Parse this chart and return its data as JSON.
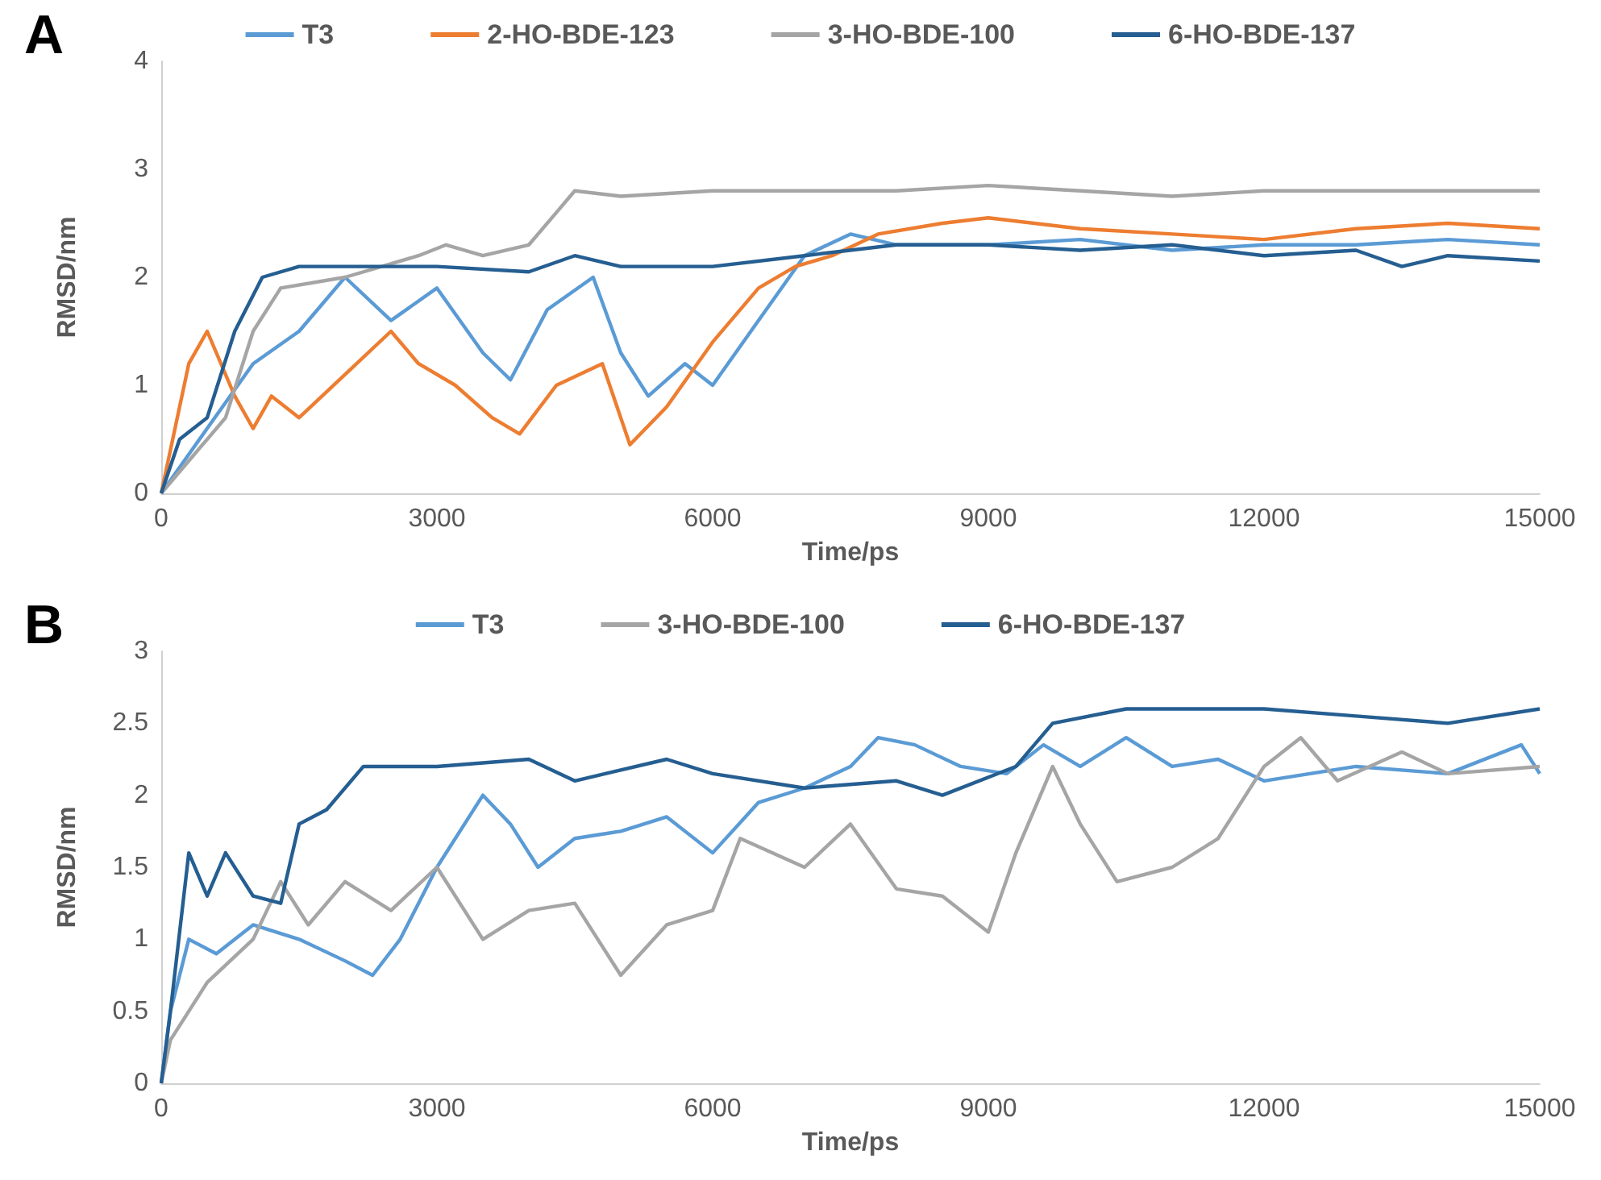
{
  "chart_data": [
    {
      "type": "line",
      "title": "A",
      "xlabel": "Time/ps",
      "ylabel": "RMSD/nm",
      "xlim": [
        0,
        15000
      ],
      "xticks": [
        0,
        3000,
        6000,
        9000,
        12000,
        15000
      ],
      "ylim": [
        0,
        4
      ],
      "yticks": [
        0,
        1,
        2,
        3,
        4
      ],
      "grid": false,
      "legend": "top",
      "marker": "none",
      "line_style": "solid",
      "series": [
        {
          "name": "T3",
          "color": "#5b9bd5",
          "x": [
            0,
            500,
            1000,
            1500,
            2000,
            2500,
            3000,
            3500,
            3800,
            4200,
            4700,
            5000,
            5300,
            5700,
            6000,
            6500,
            7000,
            7500,
            8000,
            9000,
            10000,
            11000,
            12000,
            13000,
            14000,
            15000
          ],
          "values": [
            0,
            0.6,
            1.2,
            1.5,
            2.0,
            1.6,
            1.9,
            1.3,
            1.05,
            1.7,
            2.0,
            1.3,
            0.9,
            1.2,
            1.0,
            1.6,
            2.2,
            2.4,
            2.3,
            2.3,
            2.35,
            2.25,
            2.3,
            2.3,
            2.35,
            2.3
          ]
        },
        {
          "name": "2-HO-BDE-123",
          "color": "#ed7d31",
          "x": [
            0,
            300,
            500,
            800,
            1000,
            1200,
            1500,
            2000,
            2500,
            2800,
            3200,
            3600,
            3900,
            4300,
            4800,
            5100,
            5500,
            6000,
            6500,
            6900,
            7300,
            7800,
            8500,
            9000,
            10000,
            11000,
            12000,
            13000,
            14000,
            15000
          ],
          "values": [
            0,
            1.2,
            1.5,
            0.9,
            0.6,
            0.9,
            0.7,
            1.1,
            1.5,
            1.2,
            1.0,
            0.7,
            0.55,
            1.0,
            1.2,
            0.45,
            0.8,
            1.4,
            1.9,
            2.1,
            2.2,
            2.4,
            2.5,
            2.55,
            2.45,
            2.4,
            2.35,
            2.45,
            2.5,
            2.45
          ]
        },
        {
          "name": "3-HO-BDE-100",
          "color": "#a5a5a5",
          "x": [
            0,
            300,
            700,
            1000,
            1300,
            2000,
            2800,
            3100,
            3500,
            4000,
            4300,
            4500,
            5000,
            6000,
            7000,
            8000,
            9000,
            10000,
            11000,
            12000,
            13000,
            14000,
            15000
          ],
          "values": [
            0,
            0.3,
            0.7,
            1.5,
            1.9,
            2.0,
            2.2,
            2.3,
            2.2,
            2.3,
            2.6,
            2.8,
            2.75,
            2.8,
            2.8,
            2.8,
            2.85,
            2.8,
            2.75,
            2.8,
            2.8,
            2.8,
            2.8
          ]
        },
        {
          "name": "6-HO-BDE-137",
          "color": "#255e91",
          "x": [
            0,
            200,
            500,
            800,
            1100,
            1500,
            2000,
            3000,
            4000,
            4500,
            5000,
            6000,
            7000,
            8000,
            9000,
            10000,
            11000,
            12000,
            13000,
            13500,
            14000,
            15000
          ],
          "values": [
            0,
            0.5,
            0.7,
            1.5,
            2.0,
            2.1,
            2.1,
            2.1,
            2.05,
            2.2,
            2.1,
            2.1,
            2.2,
            2.3,
            2.3,
            2.25,
            2.3,
            2.2,
            2.25,
            2.1,
            2.2,
            2.15
          ]
        }
      ]
    },
    {
      "type": "line",
      "title": "B",
      "xlabel": "Time/ps",
      "ylabel": "RMSD/nm",
      "xlim": [
        0,
        15000
      ],
      "xticks": [
        0,
        3000,
        6000,
        9000,
        12000,
        15000
      ],
      "ylim": [
        0,
        3
      ],
      "yticks": [
        0,
        0.5,
        1,
        1.5,
        2,
        2.5,
        3
      ],
      "grid": false,
      "legend": "top",
      "marker": "none",
      "line_style": "solid",
      "series": [
        {
          "name": "T3",
          "color": "#5b9bd5",
          "x": [
            0,
            100,
            300,
            600,
            1000,
            1500,
            2000,
            2300,
            2600,
            3000,
            3500,
            3800,
            4100,
            4500,
            5000,
            5500,
            6000,
            6500,
            7000,
            7500,
            7800,
            8200,
            8700,
            9200,
            9600,
            10000,
            10500,
            11000,
            11500,
            12000,
            13000,
            14000,
            14800,
            15000
          ],
          "values": [
            0,
            0.5,
            1.0,
            0.9,
            1.1,
            1.0,
            0.85,
            0.75,
            1.0,
            1.5,
            2.0,
            1.8,
            1.5,
            1.7,
            1.75,
            1.85,
            1.6,
            1.95,
            2.05,
            2.2,
            2.4,
            2.35,
            2.2,
            2.15,
            2.35,
            2.2,
            2.4,
            2.2,
            2.25,
            2.1,
            2.2,
            2.15,
            2.35,
            2.15
          ]
        },
        {
          "name": "3-HO-BDE-100",
          "color": "#a5a5a5",
          "x": [
            0,
            100,
            500,
            1000,
            1300,
            1600,
            2000,
            2500,
            3000,
            3500,
            4000,
            4500,
            5000,
            5500,
            6000,
            6300,
            7000,
            7500,
            8000,
            8500,
            9000,
            9300,
            9700,
            10000,
            10400,
            11000,
            11500,
            12000,
            12400,
            12800,
            13500,
            14000,
            15000
          ],
          "values": [
            0,
            0.3,
            0.7,
            1.0,
            1.4,
            1.1,
            1.4,
            1.2,
            1.5,
            1.0,
            1.2,
            1.25,
            0.75,
            1.1,
            1.2,
            1.7,
            1.5,
            1.8,
            1.35,
            1.3,
            1.05,
            1.6,
            2.2,
            1.8,
            1.4,
            1.5,
            1.7,
            2.2,
            2.4,
            2.1,
            2.3,
            2.15,
            2.2
          ]
        },
        {
          "name": "6-HO-BDE-137",
          "color": "#255e91",
          "x": [
            0,
            100,
            300,
            500,
            700,
            1000,
            1300,
            1500,
            1800,
            2200,
            3000,
            4000,
            4500,
            5500,
            6000,
            7000,
            8000,
            8500,
            9300,
            9700,
            10500,
            12000,
            13000,
            14000,
            15000
          ],
          "values": [
            0,
            0.5,
            1.6,
            1.3,
            1.6,
            1.3,
            1.25,
            1.8,
            1.9,
            2.2,
            2.2,
            2.25,
            2.1,
            2.25,
            2.15,
            2.05,
            2.1,
            2.0,
            2.2,
            2.5,
            2.6,
            2.6,
            2.55,
            2.5,
            2.6
          ]
        }
      ]
    }
  ]
}
